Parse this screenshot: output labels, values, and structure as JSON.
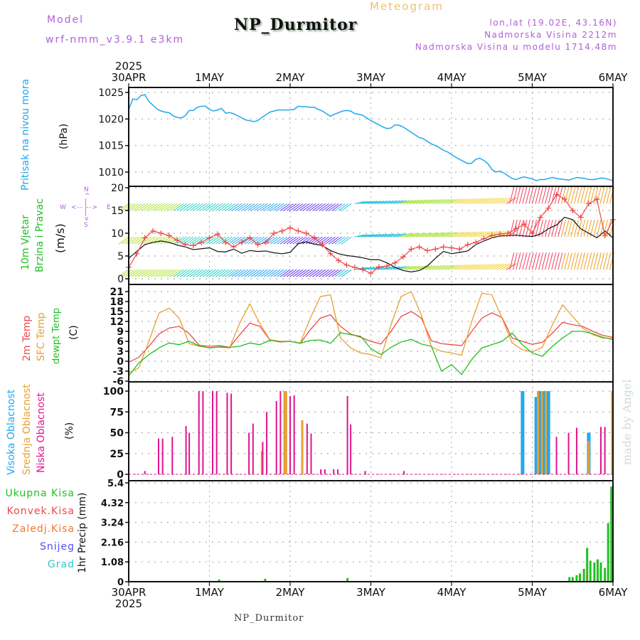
{
  "header": {
    "model_label": "Model",
    "model_name": "wrf-nmm_v3.9.1 e3km",
    "title": "NP_Durmitor",
    "meteogram_label": "Meteogram",
    "lonlat": "lon,lat (19.02E, 43.16N)",
    "elevation": "Nadmorska Visina 2212m",
    "model_elevation": "Nadmorska Visina u modelu 1714.48m"
  },
  "time_axis": {
    "year": "2025",
    "ticks": [
      "30APR",
      "1MAY",
      "2MAY",
      "3MAY",
      "4MAY",
      "5MAY",
      "6MAY"
    ]
  },
  "panels": {
    "pressure": {
      "label": "Pritisak na nivou mora",
      "unit": "(hPa)",
      "color": "#20a8f0"
    },
    "wind": {
      "label1": "10m Vjetar",
      "label2": "Brzina i Pravac",
      "unit": "(m/s)",
      "compass": {
        "n": "N",
        "s": "S",
        "w": "W",
        "e": "E"
      },
      "color_label": "#20c020",
      "color_compass": "#b060d8"
    },
    "temp": {
      "labels": [
        {
          "text": "2m Temp",
          "color": "#f04848"
        },
        {
          "text": "SFC Temp",
          "color": "#e8a030"
        },
        {
          "text": "dewpt Temp",
          "color": "#20c020"
        }
      ],
      "unit": "(C)"
    },
    "cloud": {
      "labels": [
        {
          "text": "Visoka Oblacnost",
          "color": "#20a8f0"
        },
        {
          "text": "Srednja Oblacnost",
          "color": "#e8a030"
        },
        {
          "text": "Niska Oblacnost",
          "color": "#e0148c"
        }
      ],
      "unit": "(%)"
    },
    "precip": {
      "legend": [
        {
          "text": "Ukupna Kisa",
          "color": "#20c020"
        },
        {
          "text": "Konvek.Kisa",
          "color": "#f04848"
        },
        {
          "text": "Zaledj.Kisa",
          "color": "#f07830"
        },
        {
          "text": "Snijeg",
          "color": "#5050f0"
        },
        {
          "text": "Grad",
          "color": "#30c8d0"
        }
      ],
      "unit": "1hr Precip (mm)"
    }
  },
  "footer": {
    "station": "NP_Durmitor",
    "credit": "made by Angel"
  },
  "chart_data": [
    {
      "type": "line",
      "title": "Pritisak na nivou mora",
      "ylabel": "(hPa)",
      "ylim": [
        1008,
        1026
      ],
      "yticks": [
        1010,
        1015,
        1020,
        1025
      ],
      "grid": true,
      "x_days": [
        0,
        0.05,
        0.1,
        0.15,
        0.2,
        0.25,
        0.3,
        0.35,
        0.4,
        0.45,
        0.5,
        0.55,
        0.6,
        0.65,
        0.7,
        0.75,
        0.8,
        0.85,
        0.9,
        0.95,
        1.0,
        1.05,
        1.1,
        1.15,
        1.2,
        1.25,
        1.3,
        1.35,
        1.4,
        1.45,
        1.5,
        1.55,
        1.6,
        1.65,
        1.7,
        1.75,
        1.8,
        1.85,
        1.9,
        1.95,
        2.0,
        2.05,
        2.1,
        2.15,
        2.2,
        2.25,
        2.3,
        2.35,
        2.4,
        2.45,
        2.5,
        2.55,
        2.6,
        2.65,
        2.7,
        2.75,
        2.8,
        2.85,
        2.9,
        2.95,
        3.0,
        3.05,
        3.1,
        3.15,
        3.2,
        3.25,
        3.3,
        3.35,
        3.4,
        3.45,
        3.5,
        3.55,
        3.6,
        3.65,
        3.7,
        3.75,
        3.8,
        3.85,
        3.9,
        3.95,
        4.0,
        4.05,
        4.1,
        4.15,
        4.2,
        4.25,
        4.3,
        4.35,
        4.4,
        4.45,
        4.5,
        4.55,
        4.6,
        4.65,
        4.7,
        4.75,
        4.8,
        4.85,
        4.9,
        4.95,
        5.0,
        5.05,
        5.1,
        5.15,
        5.2,
        5.25,
        5.3,
        5.35,
        5.4,
        5.45,
        5.5,
        5.55,
        5.6,
        5.65,
        5.7,
        5.75,
        5.8,
        5.85,
        5.9,
        5.95,
        6.0
      ],
      "series": [
        {
          "name": "Pressure",
          "values": [
            1021.8,
            1023.8,
            1023.6,
            1024.4,
            1024.6,
            1023.3,
            1022.6,
            1021.9,
            1021.5,
            1021.3,
            1021.2,
            1020.6,
            1020.3,
            1020.2,
            1020.6,
            1021.6,
            1021.6,
            1022.2,
            1022.4,
            1022.4,
            1021.8,
            1021.5,
            1021.7,
            1022.0,
            1021.1,
            1021.2,
            1021.0,
            1020.6,
            1020.2,
            1019.8,
            1019.7,
            1019.5,
            1019.7,
            1020.3,
            1020.8,
            1021.3,
            1021.5,
            1021.7,
            1021.7,
            1021.7,
            1021.7,
            1021.8,
            1022.4,
            1022.3,
            1022.3,
            1022.2,
            1022.2,
            1021.8,
            1021.5,
            1021.0,
            1020.5,
            1020.9,
            1021.2,
            1021.5,
            1021.6,
            1021.5,
            1021.0,
            1020.9,
            1020.7,
            1020.2,
            1019.7,
            1019.3,
            1018.9,
            1018.5,
            1018.2,
            1018.3,
            1018.9,
            1018.8,
            1018.5,
            1018.0,
            1017.5,
            1017.0,
            1016.5,
            1016.3,
            1015.8,
            1015.3,
            1015.0,
            1014.6,
            1014.1,
            1013.8,
            1013.3,
            1012.8,
            1012.4,
            1012.0,
            1011.6,
            1011.7,
            1012.4,
            1012.6,
            1012.2,
            1011.6,
            1010.5,
            1010.0,
            1010.2,
            1009.8,
            1009.3,
            1008.8,
            1008.6,
            1008.9,
            1009.1,
            1008.9,
            1008.7,
            1008.4,
            1008.6,
            1008.6,
            1008.8,
            1009.0,
            1008.8,
            1008.7,
            1008.6,
            1008.5,
            1008.7,
            1009.0,
            1008.9,
            1008.8,
            1008.6,
            1008.6,
            1008.7,
            1008.9,
            1008.8,
            1008.6,
            1008.4
          ]
        }
      ]
    },
    {
      "type": "line",
      "title": "10m Vjetar Brzina i Pravac",
      "ylabel": "(m/s)",
      "ylim": [
        0,
        20
      ],
      "yticks": [
        0,
        5,
        10,
        15,
        20
      ],
      "grid": true,
      "x_days": [
        0,
        0.1,
        0.2,
        0.3,
        0.4,
        0.5,
        0.6,
        0.7,
        0.8,
        0.9,
        1.0,
        1.1,
        1.2,
        1.3,
        1.4,
        1.5,
        1.6,
        1.7,
        1.8,
        1.9,
        2.0,
        2.1,
        2.2,
        2.3,
        2.4,
        2.5,
        2.6,
        2.7,
        2.8,
        2.9,
        3.0,
        3.1,
        3.2,
        3.3,
        3.4,
        3.5,
        3.6,
        3.7,
        3.8,
        3.9,
        4.0,
        4.1,
        4.2,
        4.3,
        4.4,
        4.5,
        4.6,
        4.7,
        4.8,
        4.9,
        5.0,
        5.1,
        5.2,
        5.3,
        5.4,
        5.5,
        5.6,
        5.7,
        5.8,
        5.9,
        6.0
      ],
      "series": [
        {
          "name": "Wind speed",
          "color": "#111111",
          "values": [
            4.5,
            6.0,
            7.5,
            8.0,
            8.3,
            8.0,
            7.4,
            7.0,
            6.4,
            6.6,
            6.8,
            6.0,
            5.9,
            6.5,
            5.6,
            6.2,
            6.0,
            6.1,
            5.7,
            5.5,
            5.8,
            7.7,
            8.1,
            7.6,
            7.3,
            6.2,
            5.5,
            5.1,
            4.9,
            4.6,
            4.2,
            4.2,
            3.5,
            2.5,
            1.8,
            1.5,
            1.8,
            2.8,
            4.5,
            6.0,
            5.5,
            5.8,
            6.1,
            7.5,
            8.3,
            9.0,
            9.4,
            9.5,
            9.6,
            9.4,
            9.3,
            9.8,
            11.0,
            11.8,
            13.5,
            13.0,
            11.0,
            10.0,
            9.0,
            10.5,
            9.0
          ]
        },
        {
          "name": "Wind gust",
          "color": "#f04848",
          "values": [
            2.5,
            5.5,
            9.0,
            10.5,
            10.0,
            9.5,
            8.5,
            7.5,
            7.3,
            8.0,
            9.0,
            9.8,
            8.0,
            7.0,
            8.0,
            9.0,
            7.5,
            8.0,
            10.0,
            10.5,
            11.2,
            10.5,
            10.0,
            9.0,
            7.5,
            5.5,
            4.0,
            3.0,
            2.5,
            2.0,
            1.2,
            2.6,
            2.8,
            3.5,
            4.8,
            6.5,
            7.0,
            6.2,
            6.5,
            7.0,
            6.8,
            6.5,
            7.5,
            8.0,
            8.8,
            9.5,
            9.8,
            10.0,
            11.0,
            12.0,
            10.0,
            13.5,
            15.5,
            18.5,
            17.5,
            15.0,
            13.5,
            16.5,
            17.5,
            9.5,
            13.0
          ]
        }
      ]
    },
    {
      "type": "line",
      "title": "2m Temp / SFC Temp / dewpt Temp",
      "ylabel": "(C)",
      "ylim": [
        -6,
        22
      ],
      "yticks": [
        -6,
        -3,
        0,
        3,
        6,
        9,
        12,
        15,
        18,
        21
      ],
      "grid": true,
      "x_days": [
        0,
        0.125,
        0.25,
        0.375,
        0.5,
        0.625,
        0.75,
        0.875,
        1.0,
        1.125,
        1.25,
        1.375,
        1.5,
        1.625,
        1.75,
        1.875,
        2.0,
        2.125,
        2.25,
        2.375,
        2.5,
        2.625,
        2.75,
        2.875,
        3.0,
        3.125,
        3.25,
        3.375,
        3.5,
        3.625,
        3.75,
        3.875,
        4.0,
        4.125,
        4.25,
        4.375,
        4.5,
        4.625,
        4.75,
        4.875,
        5.0,
        5.125,
        5.25,
        5.375,
        5.5,
        5.625,
        5.75,
        5.875,
        6.0
      ],
      "series": [
        {
          "name": "2m Temp",
          "color": "#f04848",
          "values": [
            -0.3,
            1.2,
            4.5,
            8.2,
            10.0,
            10.5,
            8.3,
            4.8,
            4.5,
            4.7,
            4.2,
            8.0,
            11.5,
            10.5,
            6.4,
            5.8,
            6.0,
            5.4,
            9.5,
            13.0,
            14.0,
            10.5,
            8.2,
            7.2,
            6.0,
            5.2,
            9.0,
            13.5,
            15.0,
            13.0,
            6.2,
            5.3,
            5.0,
            4.7,
            9.0,
            13.0,
            14.6,
            13.2,
            7.0,
            6.0,
            5.1,
            5.7,
            8.5,
            11.7,
            11.0,
            10.5,
            9.0,
            7.8,
            7.2
          ]
        },
        {
          "name": "SFC Temp",
          "color": "#e8a030",
          "values": [
            -3.5,
            -2.0,
            6.0,
            14.5,
            16.0,
            13.0,
            5.3,
            4.5,
            4.1,
            4.3,
            4.0,
            11.5,
            17.3,
            11.3,
            6.5,
            6.0,
            6.0,
            5.5,
            13.0,
            19.5,
            20.0,
            7.0,
            4.0,
            2.5,
            2.0,
            1.0,
            11.0,
            19.5,
            21.0,
            14.0,
            4.3,
            3.0,
            2.5,
            1.8,
            12.0,
            20.5,
            20.0,
            13.0,
            5.5,
            3.5,
            2.8,
            4.2,
            11.0,
            17.0,
            13.5,
            10.0,
            8.0,
            7.0,
            6.8
          ]
        },
        {
          "name": "dewpt Temp",
          "color": "#20c020",
          "values": [
            -4.5,
            -0.5,
            2.0,
            4.0,
            5.5,
            5.0,
            6.0,
            4.6,
            4.0,
            4.3,
            4.2,
            4.5,
            5.5,
            5.0,
            6.3,
            5.9,
            6.0,
            5.4,
            6.3,
            6.4,
            5.4,
            8.6,
            8.0,
            7.5,
            3.8,
            2.0,
            4.2,
            5.8,
            6.6,
            5.2,
            4.5,
            -3.0,
            -1.0,
            -4.0,
            0.5,
            4.0,
            5.0,
            6.0,
            8.5,
            5.0,
            2.5,
            1.5,
            4.5,
            7.0,
            9.0,
            9.0,
            8.3,
            7.2,
            6.5
          ]
        }
      ]
    },
    {
      "type": "bar",
      "title": "Visoka / Srednja / Niska Oblacnost",
      "ylabel": "(%)",
      "ylim": [
        0,
        100
      ],
      "yticks": [
        0,
        25,
        50,
        75,
        100
      ],
      "grid": true,
      "series": [
        {
          "name": "Visoka Oblacnost",
          "color": "#20a8f0",
          "bars": [
            [
              4.88,
              100
            ],
            [
              5.05,
              93
            ],
            [
              5.1,
              100
            ],
            [
              5.15,
              100
            ],
            [
              5.2,
              100
            ],
            [
              5.7,
              50
            ]
          ]
        },
        {
          "name": "Srednja Oblacnost",
          "color": "#e8a030",
          "bars": [
            [
              1.65,
              28
            ],
            [
              1.93,
              100
            ],
            [
              1.95,
              100
            ],
            [
              2.15,
              65
            ],
            [
              4.9,
              0
            ],
            [
              5.07,
              100
            ],
            [
              5.12,
              100
            ],
            [
              5.17,
              100
            ],
            [
              5.7,
              40
            ],
            [
              5.99,
              100
            ]
          ]
        },
        {
          "name": "Niska Oblacnost",
          "color": "#e0148c",
          "bars": [
            [
              0.2,
              4
            ],
            [
              0.37,
              43
            ],
            [
              0.42,
              43
            ],
            [
              0.54,
              45
            ],
            [
              0.71,
              58
            ],
            [
              0.75,
              50
            ],
            [
              0.87,
              100
            ],
            [
              0.92,
              100
            ],
            [
              1.04,
              100
            ],
            [
              1.09,
              100
            ],
            [
              1.22,
              98
            ],
            [
              1.27,
              97
            ],
            [
              1.49,
              50
            ],
            [
              1.54,
              61
            ],
            [
              1.66,
              39
            ],
            [
              1.71,
              75
            ],
            [
              1.83,
              88
            ],
            [
              1.88,
              100
            ],
            [
              2.0,
              94
            ],
            [
              2.05,
              95
            ],
            [
              2.21,
              61
            ],
            [
              2.26,
              49
            ],
            [
              2.38,
              6
            ],
            [
              2.43,
              6
            ],
            [
              2.54,
              6
            ],
            [
              2.59,
              6
            ],
            [
              2.71,
              94
            ],
            [
              2.75,
              60
            ],
            [
              2.93,
              4
            ],
            [
              3.41,
              4
            ],
            [
              5.3,
              45
            ],
            [
              5.45,
              50
            ],
            [
              5.55,
              56
            ],
            [
              5.85,
              57
            ],
            [
              5.9,
              57
            ]
          ]
        }
      ]
    },
    {
      "type": "bar",
      "title": "1hr Precip",
      "ylabel": "1hr Precip (mm)",
      "ylim": [
        0,
        5.4
      ],
      "yticks": [
        0,
        1.08,
        2.16,
        3.24,
        4.32,
        5.4
      ],
      "grid": true,
      "series": [
        {
          "name": "Ukupna Kisa",
          "color": "#20c020",
          "bars": [
            [
              1.12,
              0.12
            ],
            [
              1.16,
              0.04
            ],
            [
              1.21,
              0.04
            ],
            [
              1.69,
              0.16
            ],
            [
              1.74,
              0.04
            ],
            [
              2.71,
              0.2
            ],
            [
              5.46,
              0.25
            ],
            [
              5.5,
              0.25
            ],
            [
              5.55,
              0.35
            ],
            [
              5.59,
              0.45
            ],
            [
              5.64,
              0.7
            ],
            [
              5.68,
              1.85
            ],
            [
              5.72,
              1.15
            ],
            [
              5.77,
              1.05
            ],
            [
              5.81,
              1.22
            ],
            [
              5.85,
              1.05
            ],
            [
              5.9,
              0.75
            ],
            [
              5.94,
              3.2
            ],
            [
              5.98,
              5.2
            ]
          ]
        },
        {
          "name": "Konvek.Kisa",
          "color": "#f04848",
          "bars": [
            [
              1.69,
              0.08
            ],
            [
              2.71,
              0.1
            ],
            [
              5.68,
              0.5
            ]
          ]
        }
      ]
    }
  ]
}
